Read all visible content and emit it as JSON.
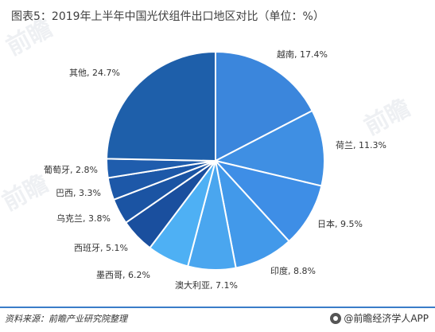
{
  "title": "图表5：2019年上半年中国光伏组件出口地区对比（单位：%）",
  "source": "资料来源：前瞻产业研究院整理",
  "brand": "@前瞻经济学人APP",
  "watermark_text": "前瞻",
  "chart_data": {
    "type": "pie",
    "start": "12 o'clock, clockwise",
    "slices": [
      {
        "label": "越南",
        "value": 17.4,
        "color": "#3b86dc"
      },
      {
        "label": "荷兰",
        "value": 11.3,
        "color": "#3f8fe3"
      },
      {
        "label": "日本",
        "value": 9.5,
        "color": "#3e8ee6"
      },
      {
        "label": "印度",
        "value": 8.8,
        "color": "#4299ea"
      },
      {
        "label": "澳大利亚",
        "value": 7.1,
        "color": "#4aa6ef"
      },
      {
        "label": "墨西哥",
        "value": 6.2,
        "color": "#4eb0f4"
      },
      {
        "label": "西班牙",
        "value": 5.1,
        "color": "#1a4f9e"
      },
      {
        "label": "乌克兰",
        "value": 3.8,
        "color": "#1b54a3"
      },
      {
        "label": "巴西",
        "value": 3.3,
        "color": "#1d58a8"
      },
      {
        "label": "葡萄牙",
        "value": 2.8,
        "color": "#1f5dad"
      },
      {
        "label": "其他",
        "value": 24.7,
        "color": "#1e5faa"
      }
    ]
  }
}
